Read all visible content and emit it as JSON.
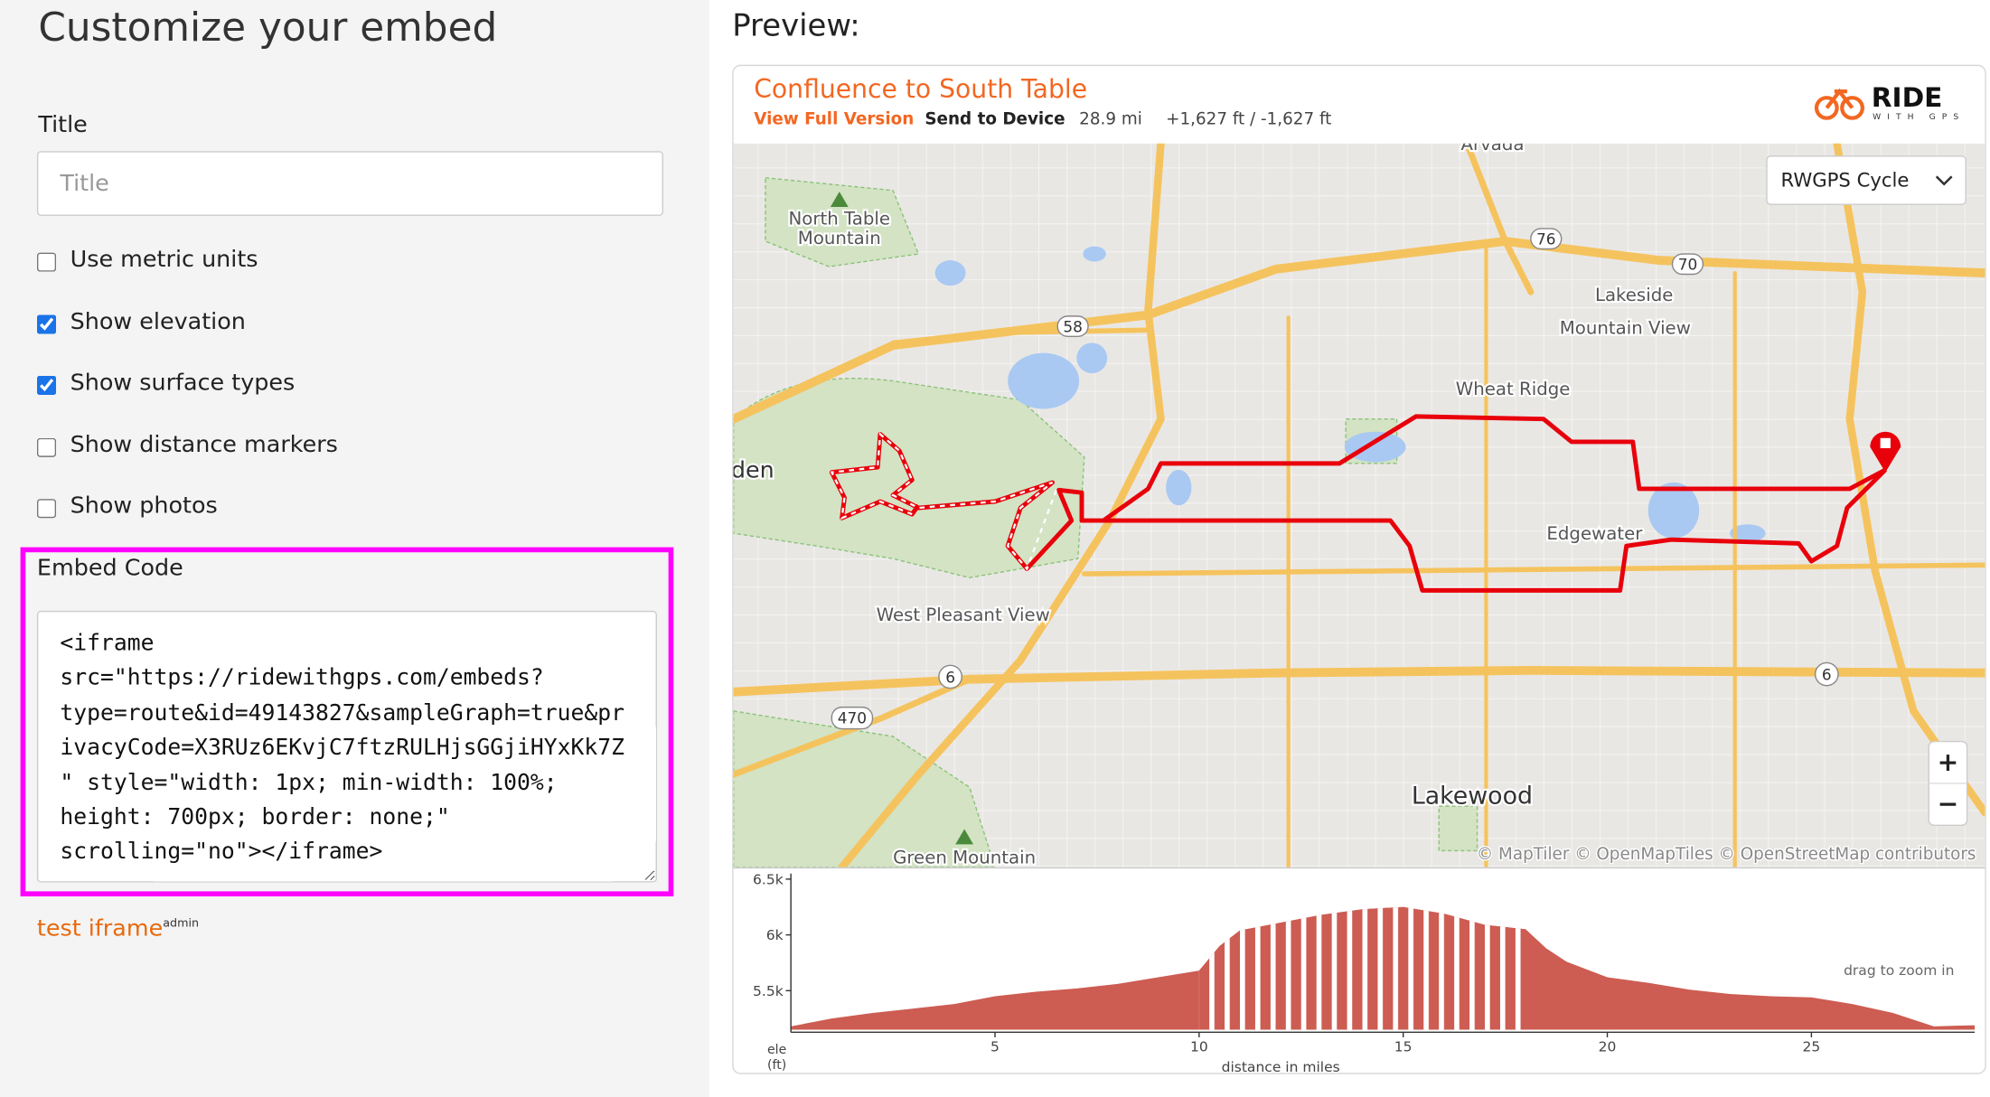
{
  "page": {
    "title": "Customize your embed",
    "form": {
      "title_label": "Title",
      "title_placeholder": "Title",
      "options": [
        {
          "label": "Use metric units",
          "checked": false
        },
        {
          "label": "Show elevation",
          "checked": true
        },
        {
          "label": "Show surface types",
          "checked": true
        },
        {
          "label": "Show distance markers",
          "checked": false
        },
        {
          "label": "Show photos",
          "checked": false
        }
      ],
      "embed_label": "Embed Code",
      "embed_code": "<iframe src=\"https://ridewithgps.com/embeds?type=route&id=49143827&sampleGraph=true&privacyCode=X3RUz6EKvjC7ftzRULHjsGGjiHYxKk7Z\" style=\"width: 1px; min-width: 100%; height: 700px; border: none;\" scrolling=\"no\"></iframe>",
      "test_link": "test iframe",
      "test_badge": "admin"
    }
  },
  "preview": {
    "heading": "Preview:",
    "route_title": "Confluence to South Table",
    "view_full": "View Full Version",
    "send": "Send to Device",
    "distance": "28.9 mi",
    "elevation_gain": "+1,627 ft / -1,627 ft",
    "logo": "RIDE",
    "logo_sub": "WITH GPS",
    "map_style": "RWGPS Cycle",
    "zoom_in": "+",
    "zoom_out": "−",
    "map_labels": [
      "Arvada",
      "North Table",
      "Mountain",
      "Lakeside",
      "Mountain View",
      "Wheat Ridge",
      "Edgewater",
      "West Pleasant View",
      "Lakewood",
      "Green Mountain",
      "den"
    ],
    "road_shields": [
      "76",
      "70",
      "58",
      "6",
      "6",
      "470"
    ],
    "attribution": "© MapTiler © OpenMapTiles © OpenStreetMap contributors",
    "hint": "drag to zoom in"
  },
  "chart_data": {
    "type": "area",
    "x_label": "distance in miles",
    "y_label": [
      "ele",
      "(ft)"
    ],
    "x": [
      0,
      1,
      2,
      3,
      4,
      5,
      6,
      7,
      8,
      9,
      10,
      10.5,
      11,
      12,
      13,
      14,
      15,
      16,
      17,
      18,
      18.5,
      19,
      20,
      21,
      22,
      23,
      24,
      25,
      26,
      27,
      28,
      29
    ],
    "values": [
      5180,
      5250,
      5300,
      5340,
      5380,
      5450,
      5490,
      5520,
      5560,
      5620,
      5680,
      5900,
      6040,
      6110,
      6180,
      6230,
      6250,
      6190,
      6090,
      6050,
      5880,
      5760,
      5620,
      5570,
      5510,
      5470,
      5450,
      5440,
      5380,
      5300,
      5180,
      5190
    ],
    "color": "#cd5c52",
    "xlim": [
      0,
      29
    ],
    "xticks": [
      5,
      10,
      15,
      20,
      25
    ],
    "ylim": [
      5150,
      6550
    ],
    "yticks": [
      {
        "value": 5500,
        "label": "5.5k"
      },
      {
        "value": 6000,
        "label": "6k"
      },
      {
        "value": 6500,
        "label": "6.5k"
      }
    ]
  }
}
